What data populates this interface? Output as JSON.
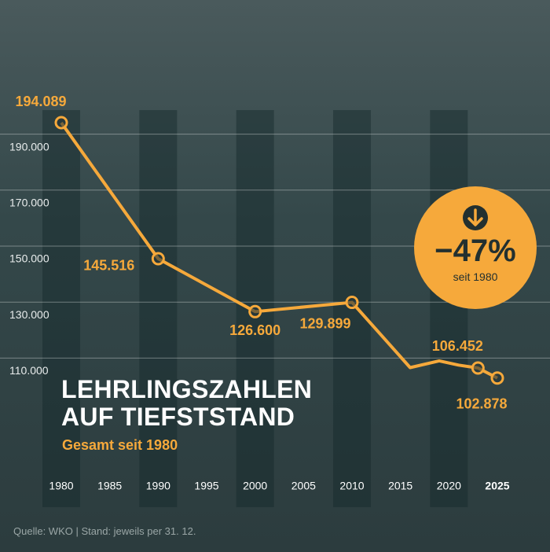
{
  "chart_data": {
    "type": "line",
    "title": "LEHRLINGSZAHLEN AUF TIEFSTSTAND",
    "subtitle": "Gesamt seit 1980",
    "x": [
      1980,
      1990,
      2000,
      2010,
      2016,
      2019,
      2021,
      2023,
      2025
    ],
    "values": [
      194089,
      145516,
      126600,
      129899,
      106600,
      109000,
      107500,
      106452,
      102878
    ],
    "value_labels": [
      "194.089",
      "145.516",
      "126.600",
      "129.899",
      null,
      null,
      null,
      "106.452",
      "102.878"
    ],
    "color": "#f6a93b",
    "xlim": [
      1980,
      2025
    ],
    "xticks": [
      1980,
      1985,
      1990,
      1995,
      2000,
      2005,
      2010,
      2015,
      2020,
      2025
    ],
    "ylim": [
      100000,
      200000
    ],
    "yticks": [
      {
        "value": 110000,
        "label": "110.000"
      },
      {
        "value": 130000,
        "label": "130.000"
      },
      {
        "value": 150000,
        "label": "150.000"
      },
      {
        "value": 170000,
        "label": "170.000"
      },
      {
        "value": 190000,
        "label": "190.000"
      }
    ],
    "grid": true,
    "annotation": {
      "text": "−47%",
      "subtext": "seit 1980"
    },
    "source": "Quelle: WKO | Stand: jeweils per 31. 12."
  }
}
